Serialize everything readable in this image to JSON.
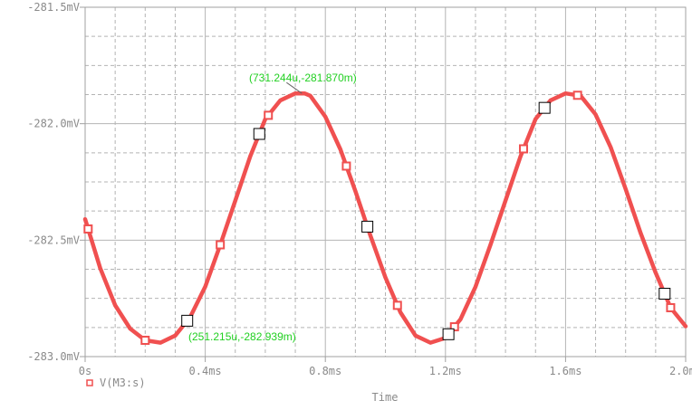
{
  "chart_data": {
    "type": "line",
    "x_unit_label": "Time",
    "xlim": [
      0,
      2.0
    ],
    "ylim": [
      -283.0,
      -281.5
    ],
    "x_ticks": [
      {
        "value": 0.0,
        "label": "0s"
      },
      {
        "value": 0.4,
        "label": "0.4ms"
      },
      {
        "value": 0.8,
        "label": "0.8ms"
      },
      {
        "value": 1.2,
        "label": "1.2ms"
      },
      {
        "value": 1.6,
        "label": "1.6ms"
      },
      {
        "value": 2.0,
        "label": "2.0ms"
      }
    ],
    "y_ticks": [
      {
        "value": -281.5,
        "label": "-281.5mV"
      },
      {
        "value": -282.0,
        "label": "-282.0mV"
      },
      {
        "value": -282.5,
        "label": "-282.5mV"
      },
      {
        "value": -283.0,
        "label": "-283.0mV"
      }
    ],
    "grid": true,
    "legend_position": "bottom-left",
    "series": [
      {
        "name": "V(M3:s)",
        "color": "#f05050",
        "marker": "hollow-square",
        "x": [
          0.0,
          0.05,
          0.1,
          0.15,
          0.2,
          0.251,
          0.3,
          0.35,
          0.4,
          0.45,
          0.5,
          0.55,
          0.6,
          0.65,
          0.7,
          0.731,
          0.75,
          0.8,
          0.85,
          0.9,
          0.95,
          1.0,
          1.05,
          1.1,
          1.15,
          1.2,
          1.25,
          1.3,
          1.35,
          1.4,
          1.45,
          1.5,
          1.55,
          1.6,
          1.65,
          1.7,
          1.75,
          1.8,
          1.85,
          1.9,
          1.95,
          2.0
        ],
        "y": [
          -282.41,
          -282.62,
          -282.78,
          -282.88,
          -282.93,
          -282.94,
          -282.91,
          -282.83,
          -282.7,
          -282.52,
          -282.33,
          -282.14,
          -281.98,
          -281.9,
          -281.87,
          -281.87,
          -281.88,
          -281.97,
          -282.11,
          -282.29,
          -282.48,
          -282.66,
          -282.81,
          -282.91,
          -282.94,
          -282.92,
          -282.84,
          -282.7,
          -282.52,
          -282.33,
          -282.14,
          -281.98,
          -281.9,
          -281.87,
          -281.88,
          -281.96,
          -282.1,
          -282.28,
          -282.47,
          -282.64,
          -282.79,
          -282.87
        ],
        "marker_x": [
          0.01,
          0.2,
          0.45,
          0.61,
          0.87,
          1.04,
          1.23,
          1.46,
          1.64,
          1.95
        ]
      }
    ],
    "cursors": [
      {
        "x": 0.731,
        "y": -281.87,
        "label": "(731.244u,-281.870m)",
        "marker_x": [
          0.34,
          0.58,
          0.94,
          1.21,
          1.53,
          1.93
        ]
      },
      {
        "x": 0.251,
        "y": -282.939,
        "label": "(251.215u,-282.939m)"
      }
    ],
    "colors": {
      "grid": "#b4b4b4",
      "frame": "#a0a0a0",
      "cursor_label": "#22d022",
      "cursor_marker": "#000000"
    }
  }
}
